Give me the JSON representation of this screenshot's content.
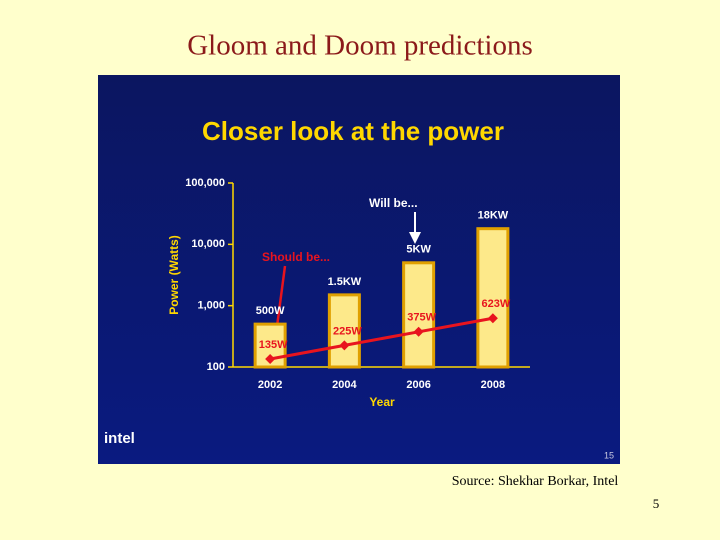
{
  "slide": {
    "title": "Gloom and Doom predictions",
    "source": "Source: Shekhar Borkar, Intel",
    "page_number": "5"
  },
  "chart_data": {
    "type": "bar",
    "title": "Closer look at the power",
    "x_label": "Year",
    "y_label": "Power (Watts)",
    "categories": [
      "2002",
      "2004",
      "2006",
      "2008"
    ],
    "log_scale": true,
    "ylim": [
      100,
      100000
    ],
    "yticks": [
      100,
      {
        "value": 1000,
        "label": "1,000"
      },
      {
        "value": 10000,
        "label": "10,000"
      },
      {
        "value": 100000,
        "label": "100,000"
      }
    ],
    "series": [
      {
        "type": "bar",
        "color": "#fde98a",
        "values": [
          500,
          1500,
          5000,
          18000
        ],
        "value_labels": [
          "500W",
          "1.5KW",
          "5KW",
          "18KW"
        ]
      },
      {
        "type": "line",
        "color": "#e8141e",
        "values": [
          135,
          225,
          375,
          623
        ],
        "value_labels": [
          "135W",
          "225W",
          "375W",
          "623W"
        ]
      }
    ],
    "annotations": [
      "Should be...",
      "Will be..."
    ],
    "logo": "intel",
    "slide_number": "15"
  }
}
